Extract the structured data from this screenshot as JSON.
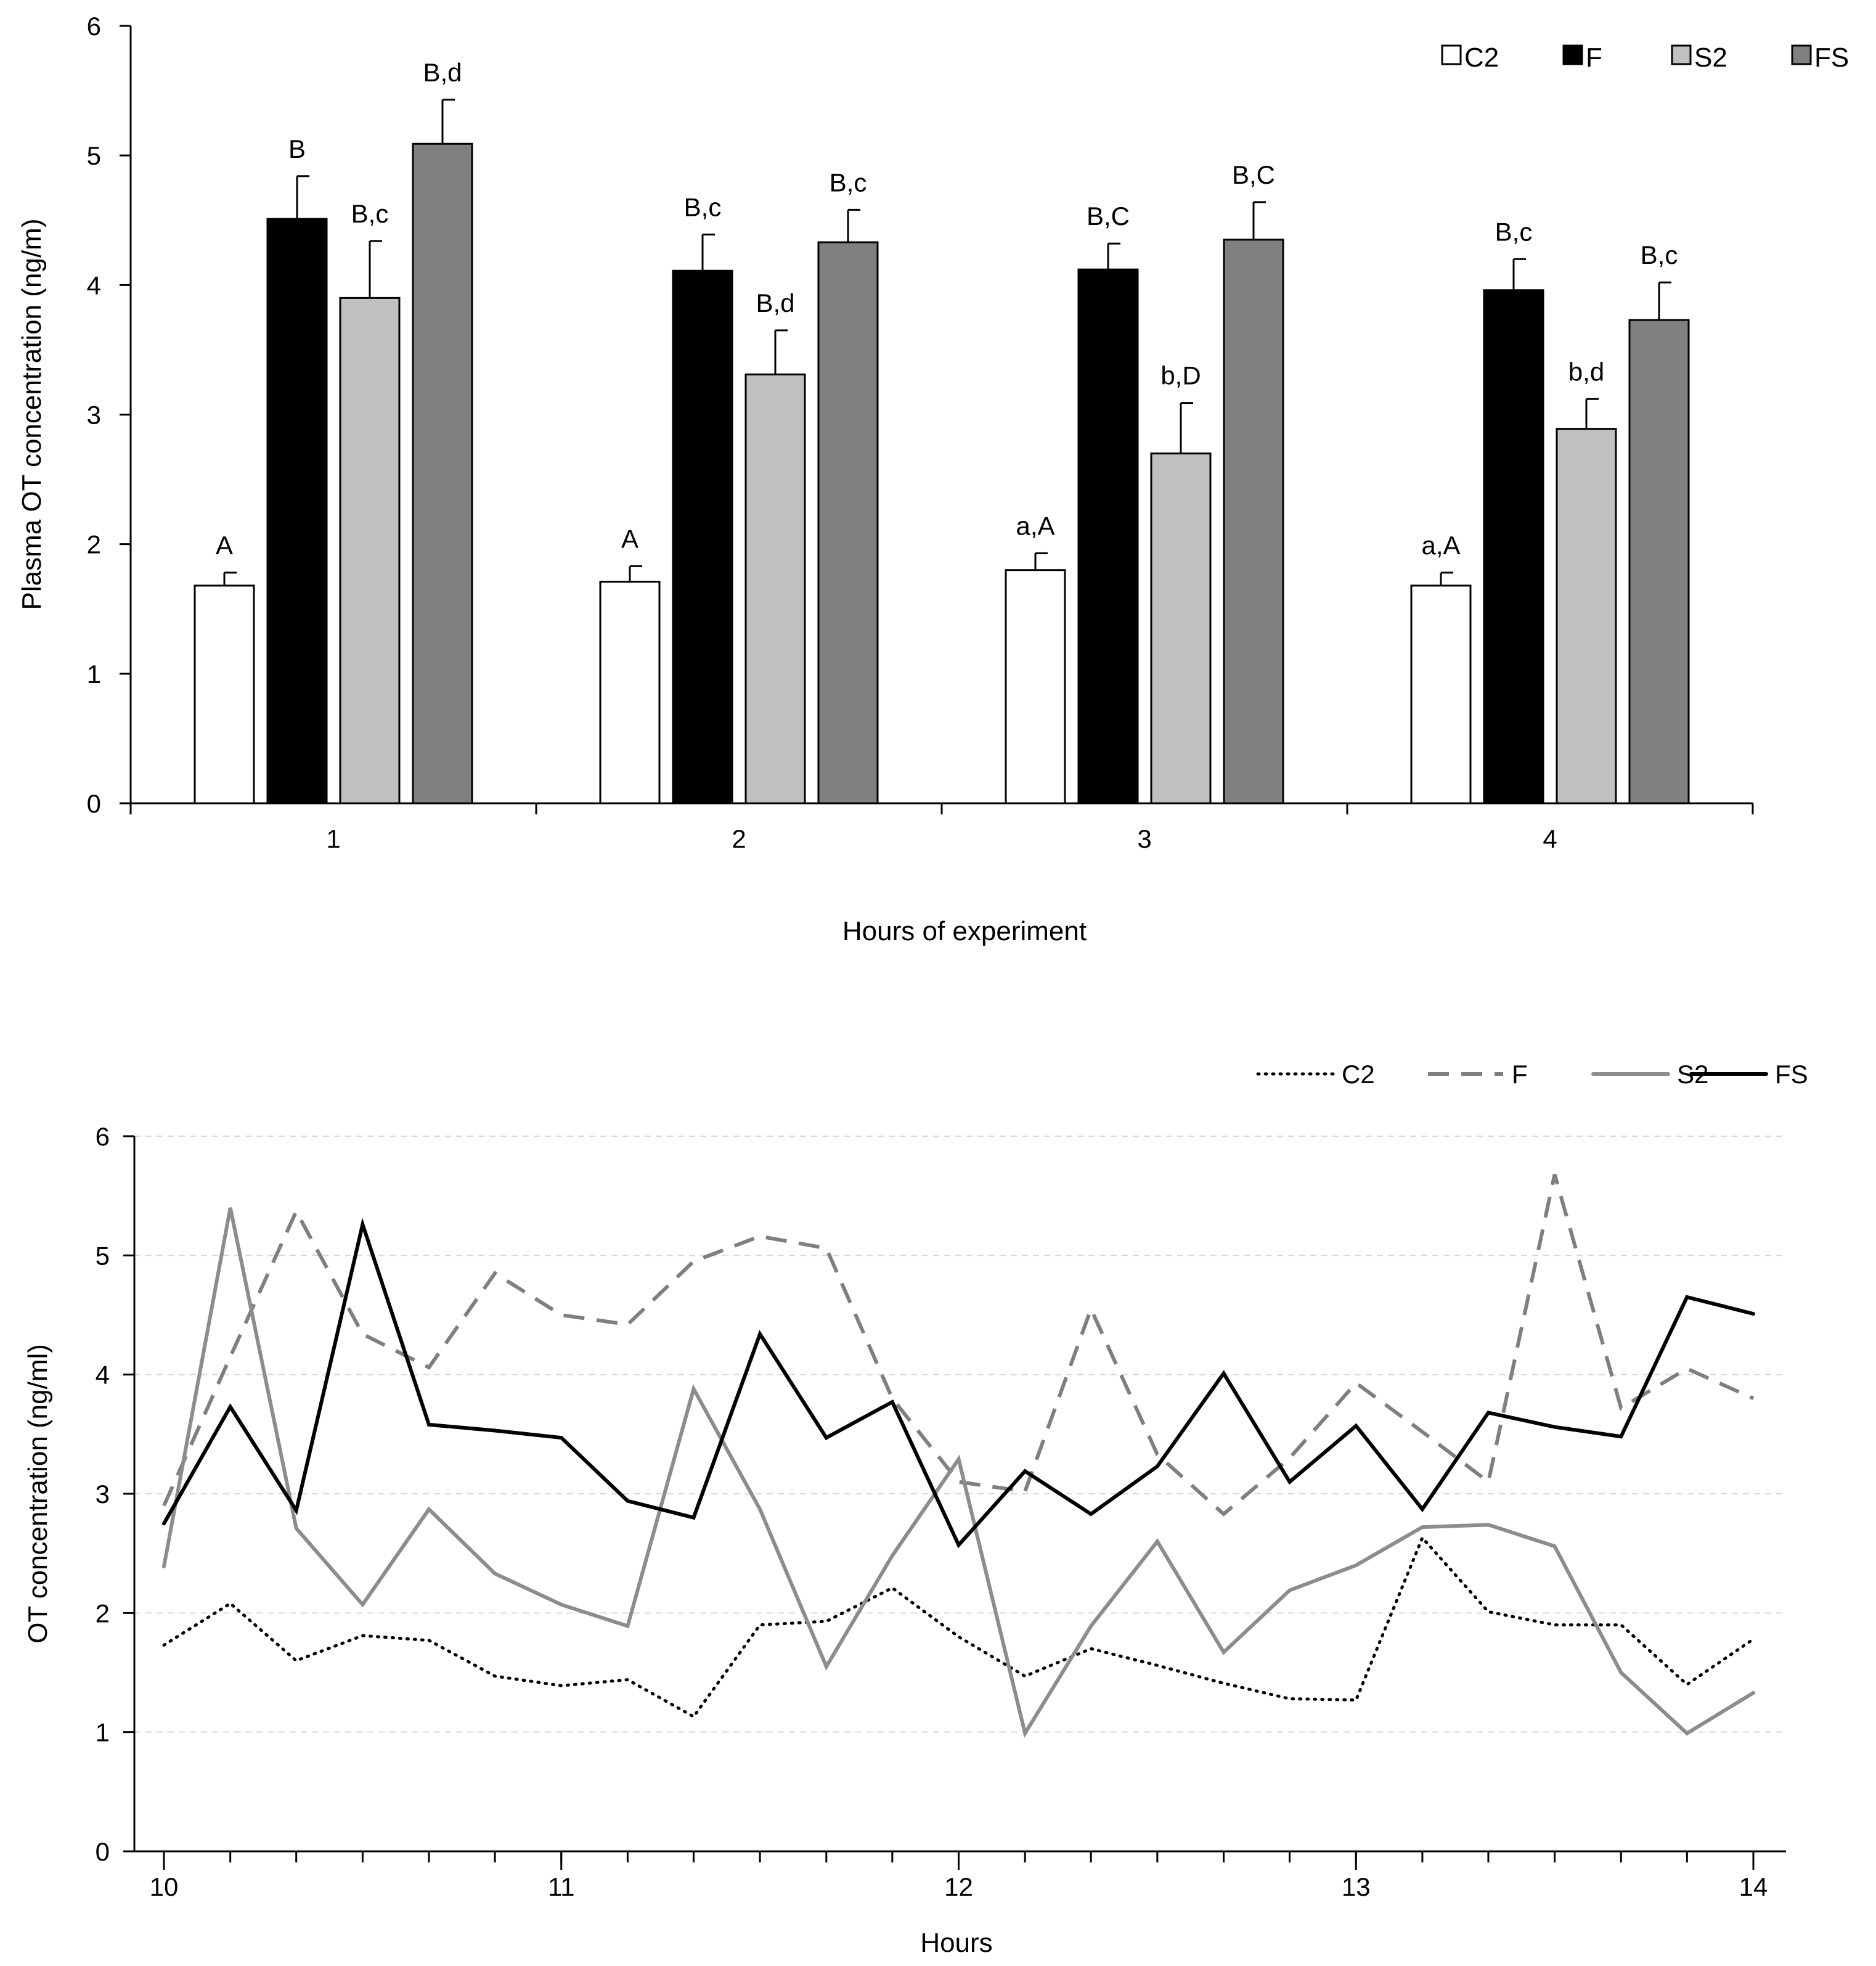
{
  "colors": {
    "C2": "#ffffff",
    "F": "#000000",
    "S2": "#c0c0c0",
    "FS": "#808080",
    "axis": "#000000",
    "grid": "#d9d9d9",
    "line_C2": "#000000",
    "line_F": "#7f7f7f",
    "line_S2": "#8c8c8c",
    "line_FS": "#000000"
  },
  "chart_data": [
    {
      "type": "bar",
      "title": "",
      "xlabel": "Hours of experiment",
      "ylabel": "Plasma OT concentration (ng/m)",
      "ylim": [
        0,
        6
      ],
      "yticks": [
        0,
        1,
        2,
        3,
        4,
        5,
        6
      ],
      "ytick_labels": [
        "0",
        "1",
        "2",
        "3",
        "4",
        "5",
        "6"
      ],
      "categories": [
        "1",
        "2",
        "3",
        "4"
      ],
      "grid": false,
      "legend_position": "top-right",
      "series": [
        {
          "name": "C2",
          "values": [
            1.68,
            1.71,
            1.8,
            1.68
          ],
          "errors": [
            0.1,
            0.12,
            0.13,
            0.1
          ],
          "labels": [
            "A",
            "A",
            "a,A",
            "a,A"
          ]
        },
        {
          "name": "F",
          "values": [
            4.51,
            4.11,
            4.12,
            3.96
          ],
          "errors": [
            0.33,
            0.28,
            0.2,
            0.24
          ],
          "labels": [
            "B",
            "B,c",
            "B,C",
            "B,c"
          ]
        },
        {
          "name": "S2",
          "values": [
            3.9,
            3.31,
            2.7,
            2.89
          ],
          "errors": [
            0.44,
            0.34,
            0.39,
            0.23
          ],
          "labels": [
            "B,c",
            "B,d",
            "b,D",
            "b,d"
          ]
        },
        {
          "name": "FS",
          "values": [
            5.09,
            4.33,
            4.35,
            3.73
          ],
          "errors": [
            0.34,
            0.25,
            0.29,
            0.29
          ],
          "labels": [
            "B,d",
            "B,c",
            "B,C",
            "B,c"
          ]
        }
      ]
    },
    {
      "type": "line",
      "title": "",
      "xlabel": "Hours",
      "ylabel": "OT concentration (ng/ml)",
      "ylim": [
        0,
        6
      ],
      "xlim": [
        10,
        14
      ],
      "yticks": [
        0,
        1,
        2,
        3,
        4,
        5,
        6
      ],
      "ytick_labels": [
        "0",
        "1",
        "2",
        "3",
        "4",
        "5",
        "6"
      ],
      "xticks": [
        10,
        11,
        12,
        13,
        14
      ],
      "xtick_labels": [
        "10",
        "11",
        "12",
        "13",
        "14"
      ],
      "grid": true,
      "legend_position": "top-right",
      "x": [
        10.0,
        10.167,
        10.333,
        10.5,
        10.667,
        10.833,
        11.0,
        11.167,
        11.333,
        11.5,
        11.667,
        11.833,
        12.0,
        12.167,
        12.333,
        12.5,
        12.667,
        12.833,
        13.0,
        13.167,
        13.333,
        13.5,
        13.667,
        13.833,
        14.0
      ],
      "series": [
        {
          "name": "C2",
          "style": "dotted",
          "values": [
            1.73,
            2.08,
            1.6,
            1.81,
            1.77,
            1.47,
            1.39,
            1.44,
            1.13,
            1.9,
            1.93,
            2.21,
            1.8,
            1.47,
            1.7,
            1.56,
            1.41,
            1.28,
            1.27,
            2.63,
            2.01,
            1.9,
            1.9,
            1.4,
            1.78
          ]
        },
        {
          "name": "F",
          "style": "dashed",
          "values": [
            2.9,
            4.15,
            5.37,
            4.34,
            4.06,
            4.85,
            4.5,
            4.42,
            4.95,
            5.16,
            5.06,
            3.8,
            3.1,
            3.02,
            4.55,
            3.33,
            2.83,
            3.3,
            3.93,
            3.52,
            3.1,
            5.68,
            3.72,
            4.05,
            3.8
          ]
        },
        {
          "name": "S2",
          "style": "solid-gray",
          "values": [
            2.39,
            5.4,
            2.71,
            2.07,
            2.87,
            2.33,
            2.07,
            1.89,
            3.88,
            2.87,
            1.55,
            2.48,
            3.29,
            0.99,
            1.89,
            2.6,
            1.67,
            2.19,
            2.4,
            2.72,
            2.74,
            2.56,
            1.5,
            0.99,
            1.33
          ]
        },
        {
          "name": "FS",
          "style": "solid-black",
          "values": [
            2.75,
            3.73,
            2.86,
            5.26,
            3.58,
            3.53,
            3.47,
            2.94,
            2.8,
            4.34,
            3.47,
            3.77,
            2.57,
            3.19,
            2.83,
            3.23,
            4.01,
            3.1,
            3.57,
            2.87,
            3.68,
            3.56,
            3.48,
            4.65,
            4.51
          ]
        }
      ]
    }
  ]
}
